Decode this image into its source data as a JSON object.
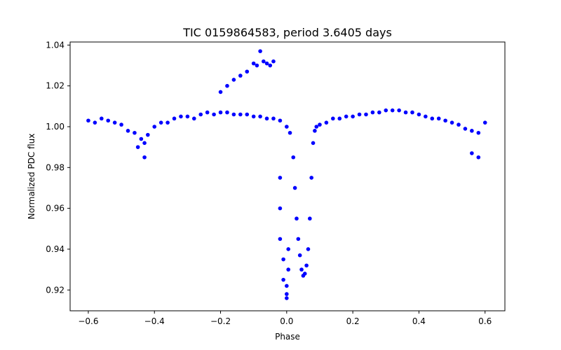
{
  "chart_data": {
    "type": "scatter",
    "title": "TIC 0159864583, period 3.6405 days",
    "xlabel": "Phase",
    "ylabel": "Normalized PDC flux",
    "xlim": [
      -0.655,
      0.66
    ],
    "ylim": [
      0.9098,
      1.0415
    ],
    "x_ticks": [
      -0.6,
      -0.4,
      -0.2,
      0.0,
      0.2,
      0.4,
      0.6
    ],
    "x_tick_labels": [
      "−0.6",
      "−0.4",
      "−0.2",
      "0.0",
      "0.2",
      "0.4",
      "0.6"
    ],
    "y_ticks": [
      0.92,
      0.94,
      0.96,
      0.98,
      1.0,
      1.02,
      1.04
    ],
    "y_tick_labels": [
      "0.92",
      "0.94",
      "0.96",
      "0.98",
      "1.00",
      "1.02",
      "1.04"
    ],
    "grid": false,
    "marker_color": "#0000ff",
    "series": [
      {
        "x": [
          -0.6,
          -0.58,
          -0.56,
          -0.54,
          -0.52,
          -0.5,
          -0.48,
          -0.46,
          -0.44,
          -0.43,
          -0.42,
          -0.4,
          -0.38,
          -0.36,
          -0.34,
          -0.32,
          -0.3,
          -0.28,
          -0.26,
          -0.24,
          -0.22,
          -0.2,
          -0.18,
          -0.16,
          -0.14,
          -0.12,
          -0.1,
          -0.08,
          -0.06,
          -0.04,
          -0.02,
          0.0,
          0.01,
          0.02,
          0.025,
          0.03,
          0.035,
          0.04,
          0.045,
          0.05,
          0.055,
          0.06,
          0.065,
          0.07,
          0.075,
          0.08,
          0.085,
          0.09,
          0.1,
          0.12,
          0.14,
          0.16,
          0.18,
          0.2,
          0.22,
          0.24,
          0.26,
          0.28,
          0.3,
          0.32,
          0.34,
          0.36,
          0.38,
          0.4,
          0.42,
          0.44,
          0.46,
          0.48,
          0.5,
          0.52,
          0.54,
          0.56,
          0.58,
          0.6,
          -0.2,
          -0.18,
          -0.16,
          -0.14,
          -0.12,
          -0.1,
          -0.09,
          -0.08,
          -0.07,
          -0.06,
          -0.05,
          -0.04,
          -0.02,
          -0.02,
          -0.02,
          -0.01,
          -0.01,
          0.0,
          0.0,
          0.0,
          0.005,
          0.005,
          -0.43,
          -0.45,
          0.56,
          0.58
        ],
        "y": [
          1.003,
          1.002,
          1.004,
          1.003,
          1.002,
          1.001,
          0.998,
          0.997,
          0.994,
          0.992,
          0.996,
          1.0,
          1.002,
          1.002,
          1.004,
          1.005,
          1.005,
          1.004,
          1.006,
          1.007,
          1.006,
          1.007,
          1.007,
          1.006,
          1.006,
          1.006,
          1.005,
          1.005,
          1.004,
          1.004,
          1.003,
          1.0,
          0.997,
          0.985,
          0.97,
          0.955,
          0.945,
          0.937,
          0.93,
          0.927,
          0.928,
          0.932,
          0.94,
          0.955,
          0.975,
          0.992,
          0.998,
          1.0,
          1.001,
          1.002,
          1.004,
          1.004,
          1.005,
          1.005,
          1.006,
          1.006,
          1.007,
          1.007,
          1.008,
          1.008,
          1.008,
          1.007,
          1.007,
          1.006,
          1.005,
          1.004,
          1.004,
          1.003,
          1.002,
          1.001,
          0.999,
          0.998,
          0.997,
          1.002,
          1.017,
          1.02,
          1.023,
          1.025,
          1.027,
          1.031,
          1.03,
          1.037,
          1.032,
          1.031,
          1.03,
          1.032,
          0.975,
          0.96,
          0.945,
          0.935,
          0.925,
          0.922,
          0.918,
          0.916,
          0.93,
          0.94,
          0.985,
          0.99,
          0.987,
          0.985
        ]
      }
    ]
  }
}
